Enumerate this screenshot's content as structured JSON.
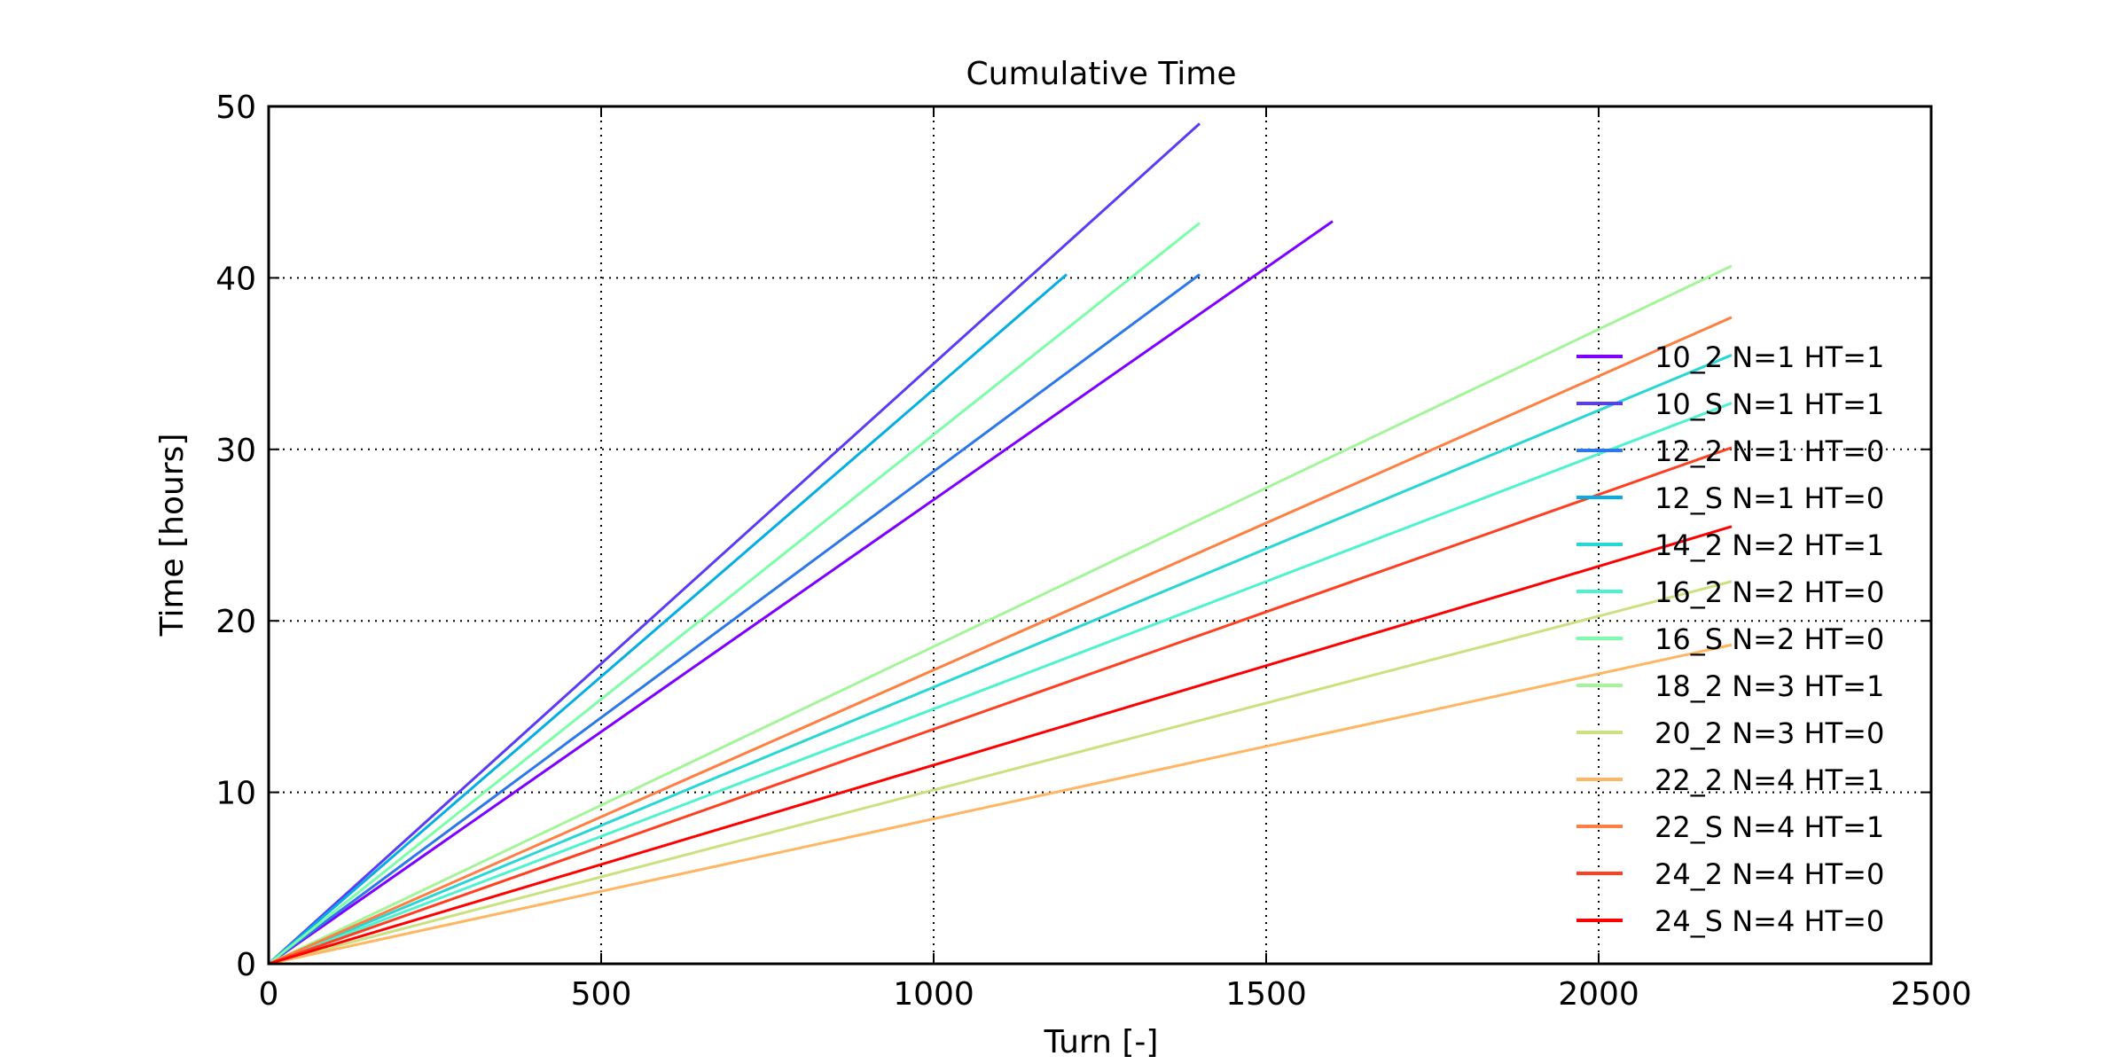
{
  "chart_data": {
    "type": "line",
    "title": "Cumulative Time",
    "xlabel": "Turn [-]",
    "ylabel": "Time [hours]",
    "xlim": [
      0,
      2500
    ],
    "ylim": [
      0,
      50
    ],
    "xticks": [
      0,
      500,
      1000,
      1500,
      2000,
      2500
    ],
    "yticks": [
      0,
      10,
      20,
      30,
      40,
      50
    ],
    "xtick_labels": [
      "0",
      "500",
      "1000",
      "1500",
      "2000",
      "2500"
    ],
    "ytick_labels": [
      "0",
      "10",
      "20",
      "30",
      "40",
      "50"
    ],
    "grid": true,
    "legend_position": "right",
    "series": [
      {
        "name": "10_2 N=1 HT=1",
        "color": "#7f00ff",
        "x": [
          0,
          1600
        ],
        "y": [
          0,
          43.3
        ]
      },
      {
        "name": "10_S N=1 HT=1",
        "color": "#5a3cf6",
        "x": [
          0,
          1400
        ],
        "y": [
          0,
          49.0
        ]
      },
      {
        "name": "12_2 N=1 HT=0",
        "color": "#2c78ea",
        "x": [
          0,
          1400
        ],
        "y": [
          0,
          40.2
        ]
      },
      {
        "name": "12_S N=1 HT=0",
        "color": "#05aee2",
        "x": [
          0,
          1200
        ],
        "y": [
          0,
          40.2
        ]
      },
      {
        "name": "14_2 N=2 HT=1",
        "color": "#28d6d6",
        "x": [
          0,
          2200
        ],
        "y": [
          0,
          35.5
        ]
      },
      {
        "name": "16_2 N=2 HT=0",
        "color": "#4df3ce",
        "x": [
          0,
          2200
        ],
        "y": [
          0,
          32.7
        ]
      },
      {
        "name": "16_S N=2 HT=0",
        "color": "#7cfda8",
        "x": [
          0,
          1400
        ],
        "y": [
          0,
          43.2
        ]
      },
      {
        "name": "18_2 N=3 HT=1",
        "color": "#a4f59a",
        "x": [
          0,
          2200
        ],
        "y": [
          0,
          40.7
        ]
      },
      {
        "name": "20_2 N=3 HT=0",
        "color": "#cbe07f",
        "x": [
          0,
          2200
        ],
        "y": [
          0,
          22.3
        ]
      },
      {
        "name": "22_2 N=4 HT=1",
        "color": "#ffb561",
        "x": [
          0,
          2200
        ],
        "y": [
          0,
          18.6
        ]
      },
      {
        "name": "22_S N=4 HT=1",
        "color": "#ff7e42",
        "x": [
          0,
          2200
        ],
        "y": [
          0,
          37.7
        ]
      },
      {
        "name": "24_2 N=4 HT=0",
        "color": "#ff3f21",
        "x": [
          0,
          2200
        ],
        "y": [
          0,
          30.1
        ]
      },
      {
        "name": "24_S N=4 HT=0",
        "color": "#ff0000",
        "x": [
          0,
          2200
        ],
        "y": [
          0,
          25.5
        ]
      }
    ]
  }
}
